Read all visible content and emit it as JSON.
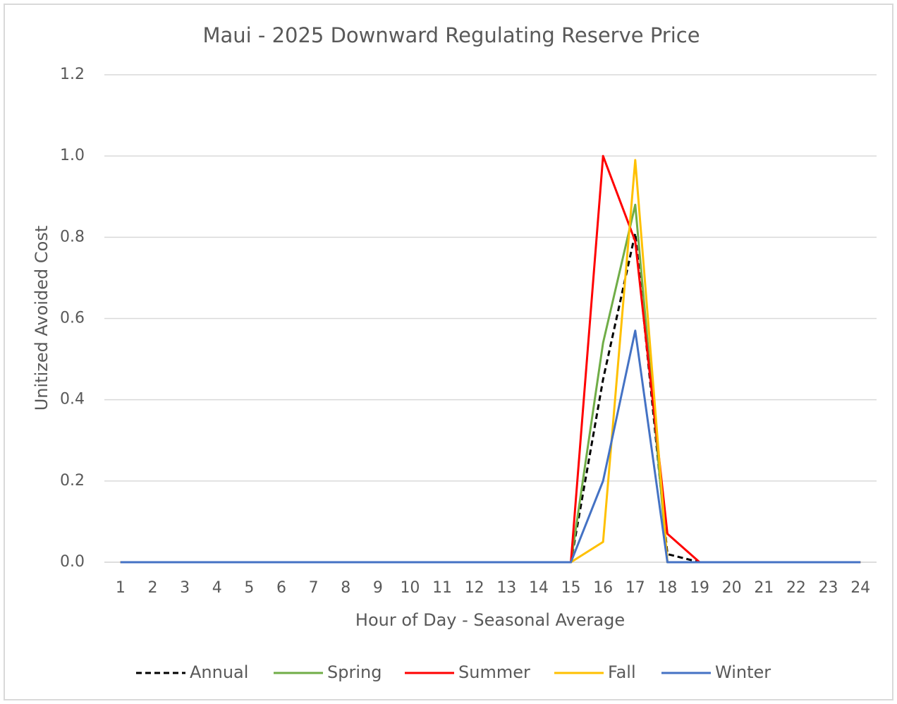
{
  "chart_data": {
    "type": "line",
    "title": "Maui - 2025 Downward Regulating Reserve Price",
    "x_label": "Hour of Day - Seasonal Average",
    "y_label": "Unitized Avoided Cost",
    "categories": [
      "1",
      "2",
      "3",
      "4",
      "5",
      "6",
      "7",
      "8",
      "9",
      "10",
      "11",
      "12",
      "13",
      "14",
      "15",
      "16",
      "17",
      "18",
      "19",
      "20",
      "21",
      "22",
      "23",
      "24"
    ],
    "series": [
      {
        "name": "Annual",
        "color": "#000000",
        "dashed": true,
        "values": [
          0,
          0,
          0,
          0,
          0,
          0,
          0,
          0,
          0,
          0,
          0,
          0,
          0,
          0,
          0,
          0.45,
          0.81,
          0.02,
          0,
          0,
          0,
          0,
          0,
          0
        ]
      },
      {
        "name": "Spring",
        "color": "#70ad47",
        "values": [
          0,
          0,
          0,
          0,
          0,
          0,
          0,
          0,
          0,
          0,
          0,
          0,
          0,
          0,
          0,
          0.54,
          0.88,
          0,
          0,
          0,
          0,
          0,
          0,
          0
        ]
      },
      {
        "name": "Summer",
        "color": "#ff0000",
        "values": [
          0,
          0,
          0,
          0,
          0,
          0,
          0,
          0,
          0,
          0,
          0,
          0,
          0,
          0,
          0,
          1.0,
          0.79,
          0.07,
          0,
          0,
          0,
          0,
          0,
          0
        ]
      },
      {
        "name": "Fall",
        "color": "#ffc000",
        "values": [
          0,
          0,
          0,
          0,
          0,
          0,
          0,
          0,
          0,
          0,
          0,
          0,
          0,
          0,
          0,
          0.05,
          0.99,
          0,
          0,
          0,
          0,
          0,
          0,
          0
        ]
      },
      {
        "name": "Winter",
        "color": "#4472c4",
        "values": [
          0,
          0,
          0,
          0,
          0,
          0,
          0,
          0,
          0,
          0,
          0,
          0,
          0,
          0,
          0,
          0.2,
          0.57,
          0,
          0,
          0,
          0,
          0,
          0,
          0
        ]
      }
    ],
    "ylim": [
      0,
      1.2
    ],
    "yticks": [
      {
        "value": 0,
        "label": "0.0"
      },
      0.2,
      0.4,
      0.6,
      0.8,
      {
        "value": 1,
        "label": "1.0"
      },
      1.2
    ],
    "grid": true,
    "legend": "bottom"
  }
}
